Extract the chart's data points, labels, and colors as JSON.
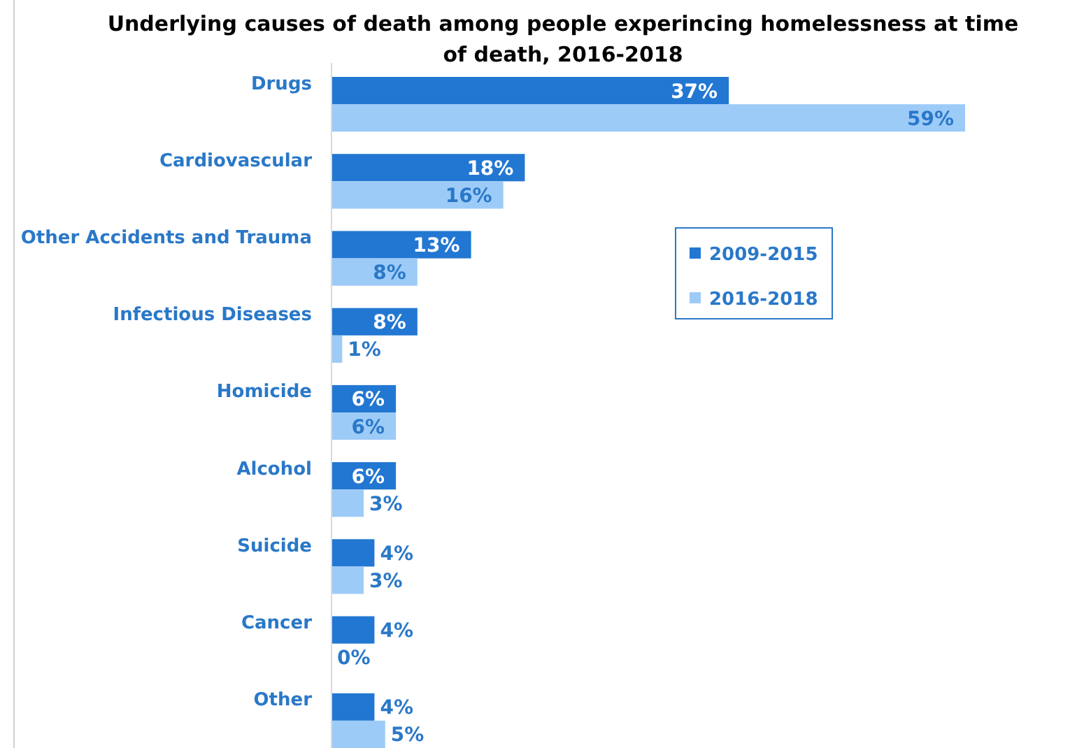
{
  "chart_data": {
    "type": "bar",
    "orientation": "horizontal",
    "title": "Underlying causes of death among people experincing homelessness at time of death, 2016-2018",
    "categories": [
      "Drugs",
      "Cardiovascular",
      "Other Accidents and Trauma",
      "Infectious Diseases",
      "Homicide",
      "Alcohol",
      "Suicide",
      "Cancer",
      "Other"
    ],
    "series": [
      {
        "name": "2009-2015",
        "color": "#2277d2",
        "values": [
          37,
          18,
          13,
          8,
          6,
          6,
          4,
          4,
          4
        ],
        "value_labels": [
          "37%",
          "18%",
          "13%",
          "8%",
          "6%",
          "6%",
          "4%",
          "4%",
          "4%"
        ]
      },
      {
        "name": "2016-2018",
        "color": "#9dcbf8",
        "values": [
          59,
          16,
          8,
          1,
          6,
          3,
          3,
          0,
          5
        ],
        "value_labels": [
          "59%",
          "16%",
          "8%",
          "1%",
          "6%",
          "3%",
          "3%",
          "0%",
          "5%"
        ]
      }
    ],
    "legend": "right"
  }
}
